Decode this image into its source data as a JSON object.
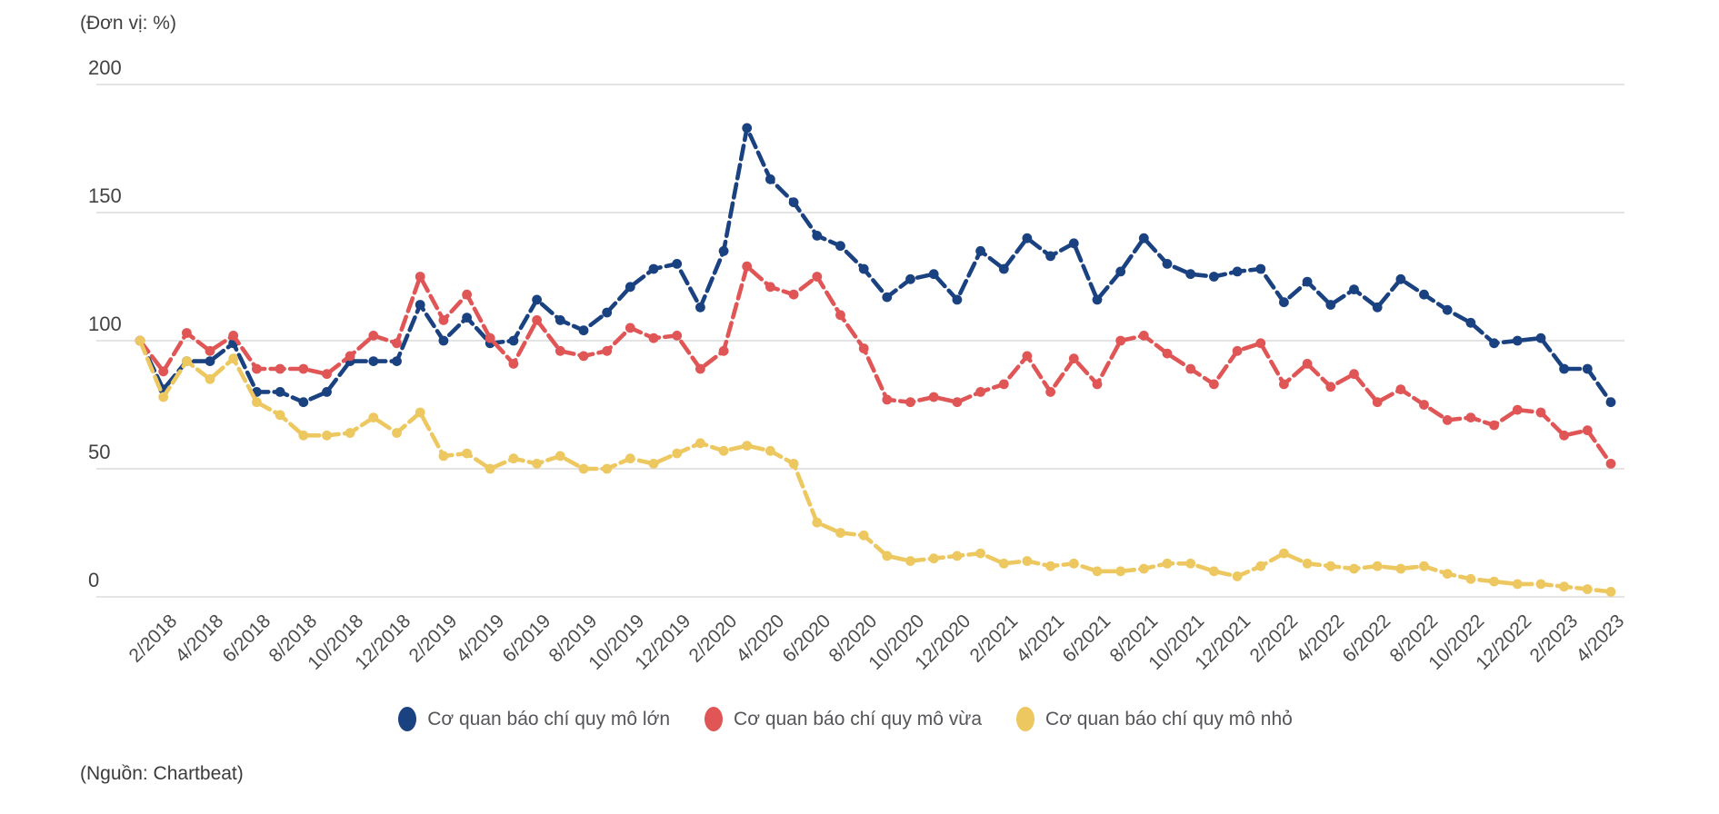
{
  "unit_label": "(Đơn vị: %)",
  "source_label": "(Nguồn: Chartbeat)",
  "axis": {
    "yticks": [
      0,
      50,
      100,
      150,
      200
    ],
    "grid_color": "#dcdcdc"
  },
  "chart_data": {
    "type": "line",
    "title": "",
    "unit": "(Đơn vị: %)",
    "ylabel": "",
    "xlabel": "",
    "ylim": [
      0,
      200
    ],
    "yticks": [
      0,
      50,
      100,
      150,
      200
    ],
    "grid": "horizontal-only",
    "legend_position": "bottom",
    "x_labels_shown_every": 2,
    "x": [
      "2/2018",
      "3/2018",
      "4/2018",
      "5/2018",
      "6/2018",
      "7/2018",
      "8/2018",
      "9/2018",
      "10/2018",
      "11/2018",
      "12/2018",
      "1/2019",
      "2/2019",
      "3/2019",
      "4/2019",
      "5/2019",
      "6/2019",
      "7/2019",
      "8/2019",
      "9/2019",
      "10/2019",
      "11/2019",
      "12/2019",
      "1/2020",
      "2/2020",
      "3/2020",
      "4/2020",
      "5/2020",
      "6/2020",
      "7/2020",
      "8/2020",
      "9/2020",
      "10/2020",
      "11/2020",
      "12/2020",
      "1/2021",
      "2/2021",
      "3/2021",
      "4/2021",
      "5/2021",
      "6/2021",
      "7/2021",
      "8/2021",
      "9/2021",
      "10/2021",
      "11/2021",
      "12/2021",
      "1/2022",
      "2/2022",
      "3/2022",
      "4/2022",
      "5/2022",
      "6/2022",
      "7/2022",
      "8/2022",
      "9/2022",
      "10/2022",
      "11/2022",
      "12/2022",
      "1/2023",
      "2/2023",
      "3/2023",
      "4/2023",
      "5/2023"
    ],
    "series": [
      {
        "name": "Cơ quan báo chí quy mô lớn",
        "color": "#1b4280",
        "values": [
          100,
          81,
          92,
          92,
          99,
          80,
          80,
          76,
          80,
          92,
          92,
          92,
          114,
          100,
          109,
          99,
          100,
          116,
          108,
          104,
          111,
          121,
          128,
          130,
          113,
          135,
          183,
          163,
          154,
          141,
          137,
          128,
          117,
          124,
          126,
          116,
          135,
          128,
          140,
          133,
          138,
          116,
          127,
          140,
          130,
          126,
          125,
          127,
          128,
          115,
          123,
          114,
          120,
          113,
          124,
          118,
          112,
          107,
          99,
          100,
          101,
          89,
          89,
          76
        ]
      },
      {
        "name": "Cơ quan báo chí quy mô vừa",
        "color": "#e05555",
        "values": [
          100,
          88,
          103,
          96,
          102,
          89,
          89,
          89,
          87,
          94,
          102,
          99,
          125,
          108,
          118,
          101,
          91,
          108,
          96,
          94,
          96,
          105,
          101,
          102,
          89,
          96,
          129,
          121,
          118,
          125,
          110,
          97,
          77,
          76,
          78,
          76,
          80,
          83,
          94,
          80,
          93,
          83,
          100,
          102,
          95,
          89,
          83,
          96,
          99,
          83,
          91,
          82,
          87,
          76,
          81,
          75,
          69,
          70,
          67,
          73,
          72,
          63,
          65,
          52
        ]
      },
      {
        "name": "Cơ quan báo chí quy mô nhỏ",
        "color": "#edc75f",
        "values": [
          100,
          78,
          92,
          85,
          93,
          76,
          71,
          63,
          63,
          64,
          70,
          64,
          72,
          55,
          56,
          50,
          54,
          52,
          55,
          50,
          50,
          54,
          52,
          56,
          60,
          57,
          59,
          57,
          52,
          29,
          25,
          24,
          16,
          14,
          15,
          16,
          17,
          13,
          14,
          12,
          13,
          10,
          10,
          11,
          13,
          13,
          10,
          8,
          12,
          17,
          13,
          12,
          11,
          12,
          11,
          12,
          9,
          7,
          6,
          5,
          5,
          4,
          3,
          2
        ]
      }
    ]
  }
}
